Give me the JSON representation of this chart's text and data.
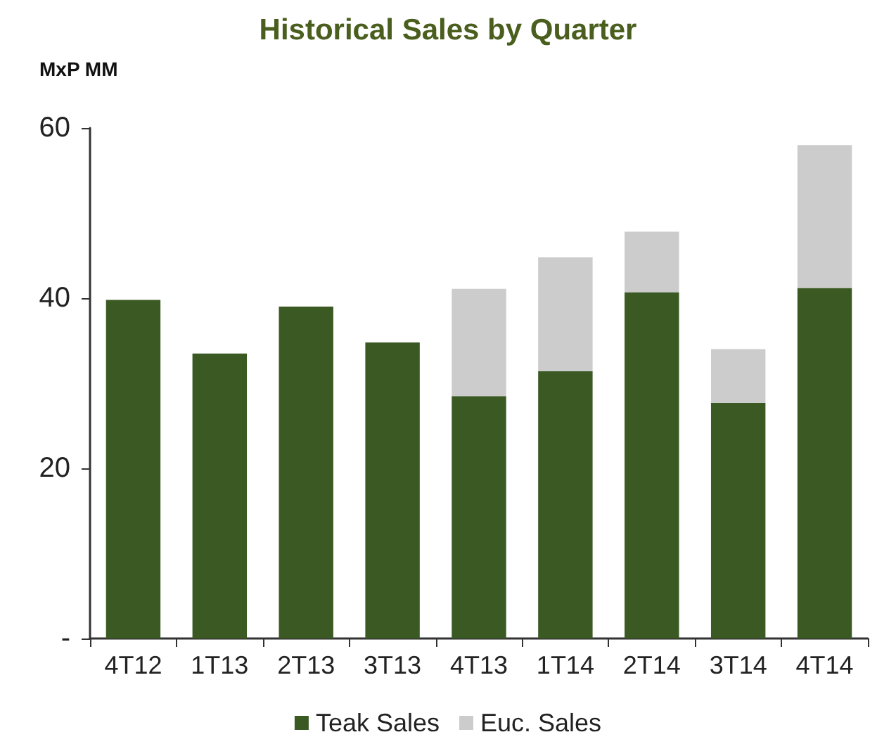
{
  "chart_data": {
    "type": "bar",
    "title": "Historical Sales by Quarter",
    "ylabel": "MxP MM",
    "categories": [
      "4T12",
      "1T13",
      "2T13",
      "3T13",
      "4T13",
      "1T14",
      "2T14",
      "3T14",
      "4T14"
    ],
    "series": [
      {
        "name": "Teak Sales",
        "color": "#3b5a23",
        "values": [
          39.8,
          33.5,
          39.0,
          34.8,
          28.5,
          31.4,
          40.7,
          27.7,
          41.2
        ]
      },
      {
        "name": "Euc. Sales",
        "color": "#cccccc",
        "values": [
          null,
          null,
          null,
          null,
          12.6,
          13.4,
          7.1,
          6.3,
          16.8
        ]
      }
    ],
    "stacked": true,
    "ylim": [
      0,
      60
    ],
    "yticks": [
      {
        "value": 0,
        "label": "-"
      },
      20,
      40,
      60
    ],
    "grid": false,
    "legend": "bottom"
  }
}
